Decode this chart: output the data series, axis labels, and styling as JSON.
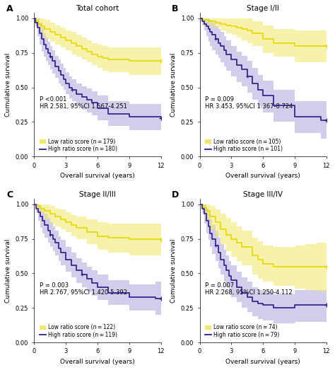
{
  "panels": [
    {
      "label": "A",
      "title": "Total cohort",
      "pval": "P <0.001",
      "hr": "HR 2.581, 95%CI 1.567-4.251",
      "n_low": 179,
      "n_high": 180,
      "low_times": [
        0,
        0.15,
        0.4,
        0.7,
        1.0,
        1.5,
        2.0,
        2.5,
        3.0,
        3.5,
        4.0,
        4.5,
        5.0,
        5.5,
        6.0,
        6.5,
        7.0,
        9.0,
        12.0
      ],
      "low_surv": [
        1.0,
        0.98,
        0.96,
        0.94,
        0.92,
        0.9,
        0.88,
        0.86,
        0.84,
        0.82,
        0.8,
        0.78,
        0.76,
        0.74,
        0.72,
        0.71,
        0.7,
        0.69,
        0.69
      ],
      "low_upper": [
        1.0,
        1.0,
        1.0,
        1.0,
        0.99,
        0.97,
        0.95,
        0.93,
        0.91,
        0.9,
        0.88,
        0.86,
        0.84,
        0.82,
        0.81,
        0.8,
        0.79,
        0.79,
        0.82
      ],
      "low_lower": [
        1.0,
        0.96,
        0.92,
        0.88,
        0.85,
        0.83,
        0.81,
        0.79,
        0.77,
        0.74,
        0.72,
        0.7,
        0.68,
        0.66,
        0.64,
        0.62,
        0.61,
        0.59,
        0.55
      ],
      "high_times": [
        0,
        0.1,
        0.3,
        0.5,
        0.7,
        0.9,
        1.1,
        1.3,
        1.5,
        1.7,
        2.0,
        2.3,
        2.5,
        2.8,
        3.0,
        3.3,
        3.6,
        4.0,
        4.5,
        5.0,
        5.5,
        6.0,
        7.0,
        9.0,
        12.0
      ],
      "high_surv": [
        1.0,
        0.97,
        0.93,
        0.89,
        0.85,
        0.81,
        0.78,
        0.75,
        0.72,
        0.69,
        0.65,
        0.62,
        0.59,
        0.56,
        0.53,
        0.5,
        0.48,
        0.45,
        0.43,
        0.41,
        0.39,
        0.35,
        0.31,
        0.29,
        0.28
      ],
      "high_upper": [
        1.0,
        1.0,
        1.0,
        0.97,
        0.93,
        0.89,
        0.86,
        0.83,
        0.8,
        0.77,
        0.73,
        0.7,
        0.67,
        0.64,
        0.61,
        0.58,
        0.56,
        0.53,
        0.51,
        0.49,
        0.47,
        0.44,
        0.4,
        0.38,
        0.4
      ],
      "high_lower": [
        1.0,
        0.94,
        0.87,
        0.81,
        0.76,
        0.72,
        0.69,
        0.66,
        0.63,
        0.6,
        0.57,
        0.53,
        0.51,
        0.48,
        0.45,
        0.42,
        0.4,
        0.37,
        0.34,
        0.32,
        0.3,
        0.26,
        0.22,
        0.19,
        0.17
      ]
    },
    {
      "label": "B",
      "title": "Stage I/II",
      "pval": "P = 0.009",
      "hr": "HR 3.453, 95%CI 1.367-8.724",
      "n_low": 105,
      "n_high": 101,
      "low_times": [
        0,
        0.3,
        0.8,
        1.5,
        2.0,
        2.5,
        3.0,
        3.5,
        4.0,
        4.5,
        5.0,
        6.0,
        7.0,
        9.0,
        12.0
      ],
      "low_surv": [
        1.0,
        0.99,
        0.98,
        0.97,
        0.96,
        0.95,
        0.94,
        0.93,
        0.92,
        0.91,
        0.89,
        0.85,
        0.82,
        0.8,
        0.8
      ],
      "low_upper": [
        1.0,
        1.0,
        1.0,
        1.0,
        1.0,
        1.0,
        1.0,
        1.0,
        1.0,
        1.0,
        0.98,
        0.95,
        0.92,
        0.91,
        0.93
      ],
      "low_lower": [
        1.0,
        0.97,
        0.94,
        0.93,
        0.91,
        0.89,
        0.88,
        0.86,
        0.84,
        0.82,
        0.8,
        0.75,
        0.72,
        0.68,
        0.65
      ],
      "high_times": [
        0,
        0.2,
        0.4,
        0.6,
        0.8,
        1.0,
        1.2,
        1.5,
        1.8,
        2.0,
        2.3,
        2.5,
        3.0,
        3.5,
        4.0,
        4.5,
        5.0,
        5.5,
        6.0,
        7.0,
        9.0,
        11.5,
        12.0
      ],
      "high_surv": [
        1.0,
        0.98,
        0.96,
        0.94,
        0.92,
        0.9,
        0.88,
        0.85,
        0.82,
        0.8,
        0.77,
        0.74,
        0.7,
        0.66,
        0.63,
        0.58,
        0.53,
        0.48,
        0.44,
        0.37,
        0.29,
        0.26,
        0.26
      ],
      "high_upper": [
        1.0,
        1.0,
        1.0,
        1.0,
        1.0,
        0.99,
        0.97,
        0.94,
        0.92,
        0.9,
        0.87,
        0.84,
        0.8,
        0.76,
        0.73,
        0.69,
        0.64,
        0.59,
        0.55,
        0.48,
        0.4,
        0.4,
        0.43
      ],
      "high_lower": [
        1.0,
        0.95,
        0.91,
        0.87,
        0.83,
        0.8,
        0.77,
        0.74,
        0.71,
        0.68,
        0.65,
        0.62,
        0.58,
        0.54,
        0.51,
        0.46,
        0.41,
        0.36,
        0.32,
        0.25,
        0.17,
        0.13,
        0.1
      ]
    },
    {
      "label": "C",
      "title": "Stage II/III",
      "pval": "P = 0.003",
      "hr": "HR 2.767, 95%CI 1.420-5.392",
      "n_low": 122,
      "n_high": 119,
      "low_times": [
        0,
        0.3,
        0.6,
        1.0,
        1.5,
        2.0,
        2.5,
        3.0,
        3.5,
        4.0,
        5.0,
        6.0,
        7.0,
        9.0,
        12.0
      ],
      "low_surv": [
        1.0,
        0.99,
        0.97,
        0.95,
        0.93,
        0.91,
        0.89,
        0.87,
        0.85,
        0.83,
        0.8,
        0.77,
        0.76,
        0.75,
        0.74
      ],
      "low_upper": [
        1.0,
        1.0,
        1.0,
        1.0,
        0.99,
        0.97,
        0.96,
        0.94,
        0.92,
        0.91,
        0.89,
        0.87,
        0.86,
        0.86,
        0.87
      ],
      "low_lower": [
        1.0,
        0.97,
        0.93,
        0.89,
        0.86,
        0.84,
        0.82,
        0.8,
        0.77,
        0.75,
        0.71,
        0.67,
        0.65,
        0.63,
        0.6
      ],
      "high_times": [
        0,
        0.2,
        0.4,
        0.6,
        0.8,
        1.0,
        1.3,
        1.5,
        1.8,
        2.0,
        2.3,
        2.5,
        3.0,
        3.5,
        4.0,
        4.5,
        5.0,
        5.5,
        6.0,
        7.0,
        9.0,
        11.5,
        12.0
      ],
      "high_surv": [
        1.0,
        0.97,
        0.94,
        0.91,
        0.88,
        0.85,
        0.81,
        0.78,
        0.75,
        0.72,
        0.68,
        0.65,
        0.6,
        0.56,
        0.52,
        0.49,
        0.46,
        0.43,
        0.4,
        0.36,
        0.33,
        0.32,
        0.32
      ],
      "high_upper": [
        1.0,
        1.0,
        1.0,
        0.98,
        0.95,
        0.93,
        0.9,
        0.87,
        0.84,
        0.81,
        0.77,
        0.74,
        0.69,
        0.65,
        0.61,
        0.58,
        0.55,
        0.52,
        0.49,
        0.45,
        0.42,
        0.44,
        0.46
      ],
      "high_lower": [
        1.0,
        0.94,
        0.88,
        0.83,
        0.79,
        0.76,
        0.72,
        0.69,
        0.66,
        0.63,
        0.59,
        0.56,
        0.51,
        0.47,
        0.43,
        0.4,
        0.37,
        0.34,
        0.31,
        0.27,
        0.23,
        0.2,
        0.18
      ]
    },
    {
      "label": "D",
      "title": "Stage III/IV",
      "pval": "P = 0.007",
      "hr": "HR 2.268, 95%CI 1.250-4.112",
      "n_low": 74,
      "n_high": 79,
      "low_times": [
        0,
        0.3,
        0.6,
        1.0,
        1.5,
        2.0,
        2.5,
        3.0,
        3.5,
        4.0,
        5.0,
        5.5,
        6.0,
        7.0,
        9.0,
        10.0,
        11.0,
        12.0
      ],
      "low_surv": [
        1.0,
        0.98,
        0.95,
        0.91,
        0.87,
        0.82,
        0.78,
        0.75,
        0.72,
        0.69,
        0.63,
        0.6,
        0.57,
        0.55,
        0.55,
        0.55,
        0.55,
        0.55
      ],
      "low_upper": [
        1.0,
        1.0,
        1.0,
        0.99,
        0.96,
        0.93,
        0.9,
        0.87,
        0.84,
        0.81,
        0.76,
        0.73,
        0.7,
        0.69,
        0.7,
        0.71,
        0.72,
        0.73
      ],
      "low_lower": [
        1.0,
        0.95,
        0.89,
        0.82,
        0.77,
        0.71,
        0.66,
        0.62,
        0.59,
        0.56,
        0.49,
        0.46,
        0.44,
        0.41,
        0.39,
        0.38,
        0.37,
        0.36
      ],
      "high_times": [
        0,
        0.2,
        0.4,
        0.6,
        0.8,
        1.0,
        1.2,
        1.5,
        1.8,
        2.0,
        2.3,
        2.5,
        2.8,
        3.0,
        3.5,
        4.0,
        4.5,
        5.0,
        5.5,
        6.0,
        7.0,
        9.0,
        12.0
      ],
      "high_surv": [
        1.0,
        0.97,
        0.93,
        0.88,
        0.84,
        0.79,
        0.75,
        0.7,
        0.65,
        0.6,
        0.56,
        0.52,
        0.48,
        0.45,
        0.4,
        0.36,
        0.33,
        0.3,
        0.28,
        0.27,
        0.25,
        0.27,
        0.27
      ],
      "high_upper": [
        1.0,
        1.0,
        1.0,
        0.97,
        0.93,
        0.89,
        0.85,
        0.81,
        0.76,
        0.71,
        0.67,
        0.63,
        0.59,
        0.56,
        0.51,
        0.47,
        0.44,
        0.4,
        0.38,
        0.37,
        0.35,
        0.38,
        0.4
      ],
      "high_lower": [
        1.0,
        0.93,
        0.86,
        0.79,
        0.74,
        0.69,
        0.64,
        0.59,
        0.54,
        0.49,
        0.44,
        0.4,
        0.37,
        0.33,
        0.29,
        0.25,
        0.22,
        0.19,
        0.17,
        0.16,
        0.14,
        0.15,
        0.13
      ]
    }
  ],
  "low_color": "#E8D800",
  "high_color": "#2E1A87",
  "low_fill_color": "#F0E868",
  "high_fill_color": "#8B7CC8",
  "low_fill_alpha": 0.55,
  "high_fill_alpha": 0.38,
  "xlabel": "Overall survival (years)",
  "ylabel": "Cumulative survival",
  "xlim": [
    0,
    12
  ],
  "ylim": [
    0.0,
    1.04
  ],
  "xticks": [
    0,
    3,
    6,
    9,
    12
  ],
  "yticks": [
    0.0,
    0.25,
    0.5,
    0.75,
    1.0
  ],
  "bg_color": "#FFFFFF",
  "panel_label_fontsize": 9,
  "title_fontsize": 7.5,
  "legend_fontsize": 5.5,
  "stats_fontsize": 6.0,
  "axis_fontsize": 6.5,
  "tick_labelsize": 6.0
}
